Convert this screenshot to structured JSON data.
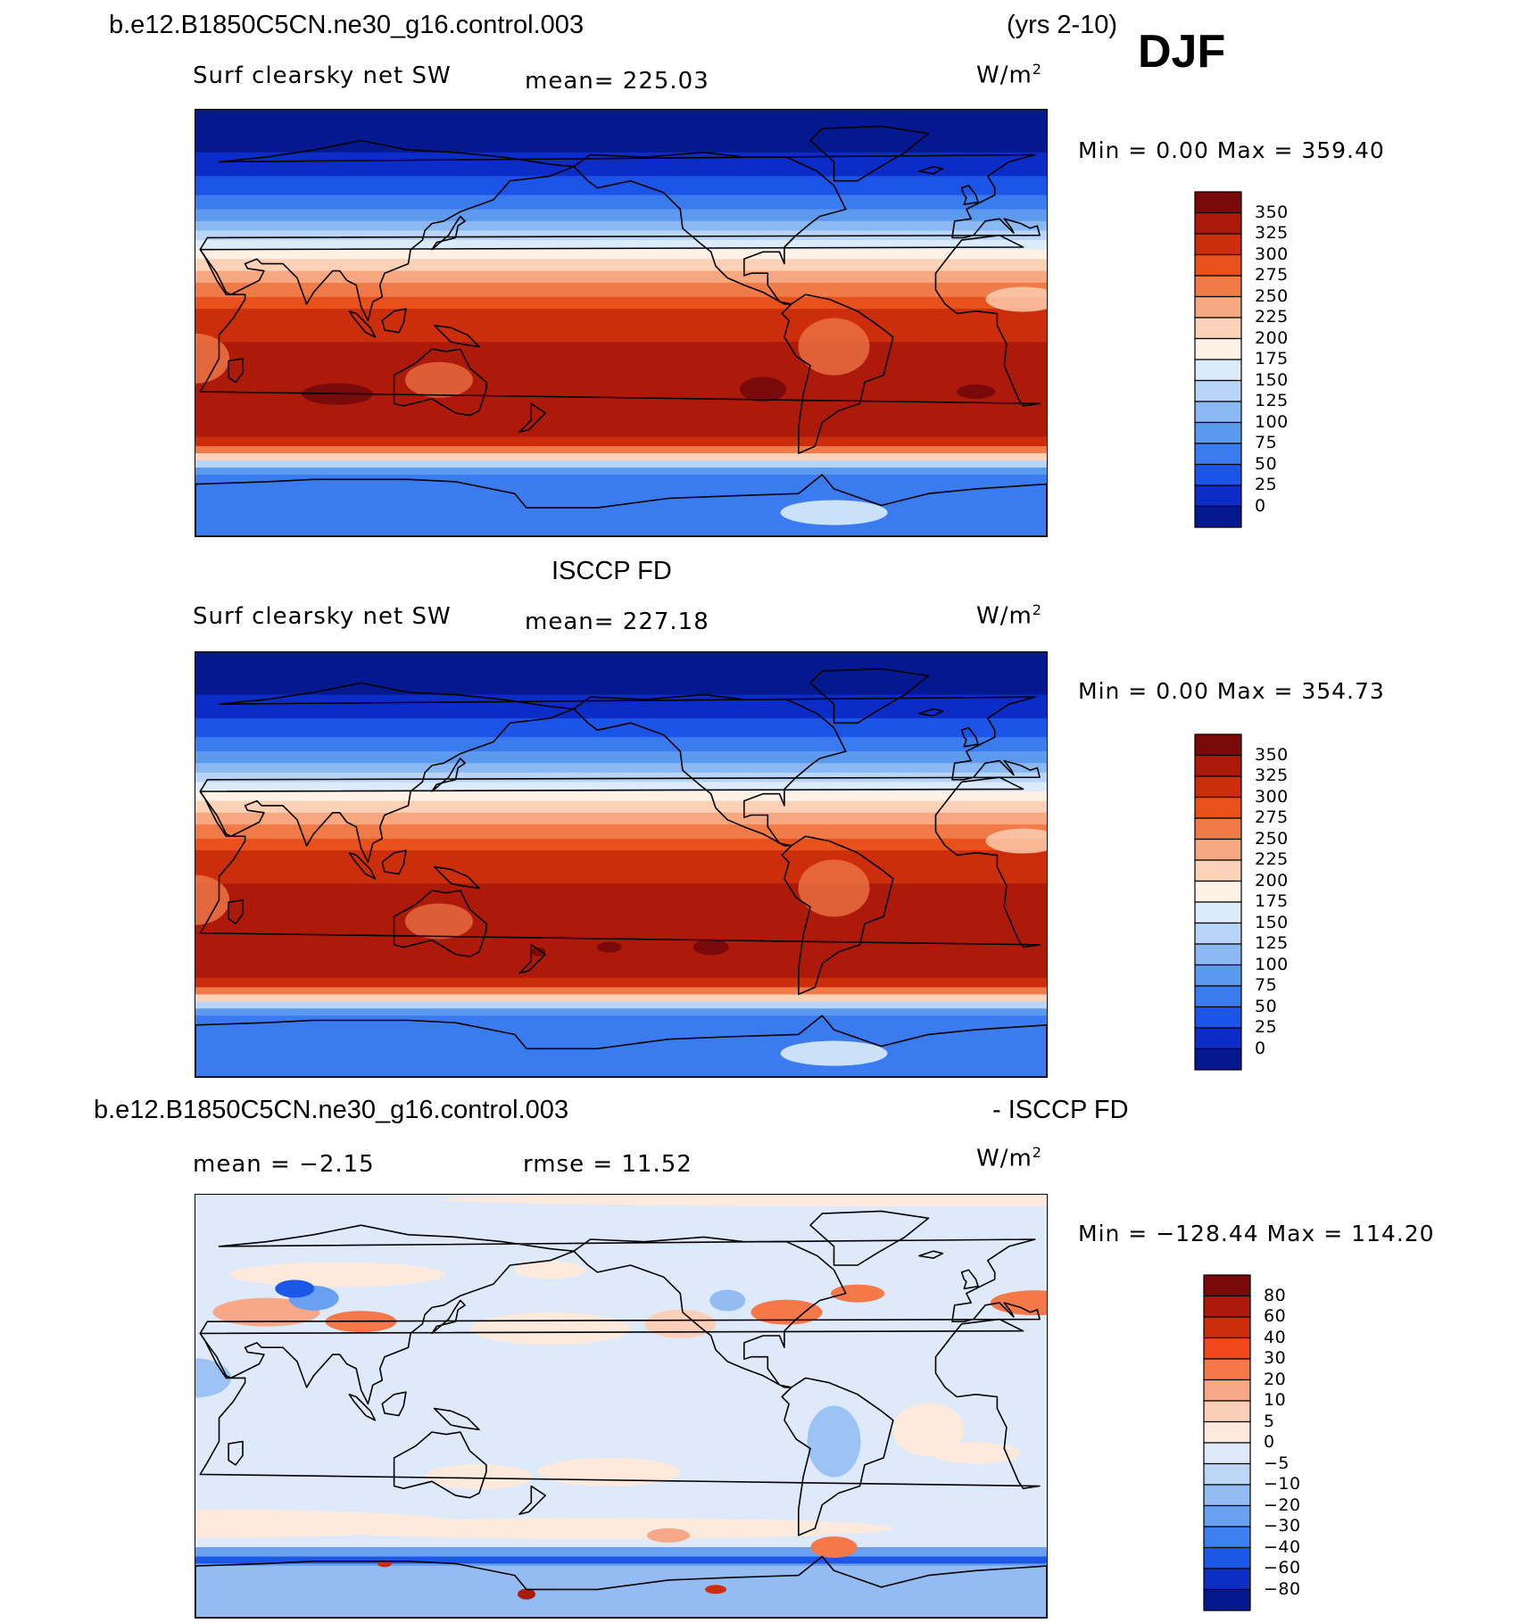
{
  "header": {
    "case_title": "b.e12.B1850C5CN.ne30_g16.control.003",
    "years": "(yrs 2-10)",
    "season": "DJF"
  },
  "panels": [
    {
      "id": "model",
      "field": "Surf clearsky net SW",
      "mean": "mean= 225.03",
      "units": "W/m",
      "units_sup": "2",
      "minmax": "Min =    0.00 Max = 359.40",
      "scale": "abs"
    },
    {
      "id": "obs",
      "title": "ISCCP FD",
      "field": "Surf clearsky net SW",
      "mean": "mean= 227.18",
      "units": "W/m",
      "units_sup": "2",
      "minmax": "Min =    0.00 Max = 354.73",
      "scale": "abs"
    },
    {
      "id": "diff",
      "title_left": "b.e12.B1850C5CN.ne30_g16.control.003",
      "title_right": "- ISCCP FD",
      "mean": "mean =   −2.15",
      "rmse": "rmse =   11.52",
      "units": "W/m",
      "units_sup": "2",
      "minmax": "Min = −128.44 Max = 114.20",
      "scale": "diff"
    }
  ],
  "colorbars": {
    "abs": {
      "labels": [
        "350",
        "325",
        "300",
        "275",
        "250",
        "225",
        "200",
        "175",
        "150",
        "125",
        "100",
        "75",
        "50",
        "25",
        "0"
      ],
      "colors": [
        "#7a0a0a",
        "#ad1a0a",
        "#cc2e0c",
        "#e8501c",
        "#f07a48",
        "#f7a880",
        "#fbd2b8",
        "#fdf0e4",
        "#dcebfa",
        "#b8d4f6",
        "#8ab8f2",
        "#5c9af0",
        "#3a7cf0",
        "#1c54e8",
        "#0c2cc8",
        "#041890"
      ]
    },
    "diff": {
      "labels": [
        "80",
        "60",
        "40",
        "30",
        "20",
        "10",
        "5",
        "0",
        "−5",
        "−10",
        "−20",
        "−30",
        "−40",
        "−60",
        "−80"
      ],
      "colors": [
        "#7a0a0a",
        "#ad1a0a",
        "#cc2e0c",
        "#f0481c",
        "#f57848",
        "#f8a888",
        "#fcd0b8",
        "#fdeadc",
        "#deeafa",
        "#bcd6f6",
        "#92bcf2",
        "#6aa0f0",
        "#3e80f0",
        "#1c58e8",
        "#0c2ec4",
        "#041890"
      ]
    }
  }
}
